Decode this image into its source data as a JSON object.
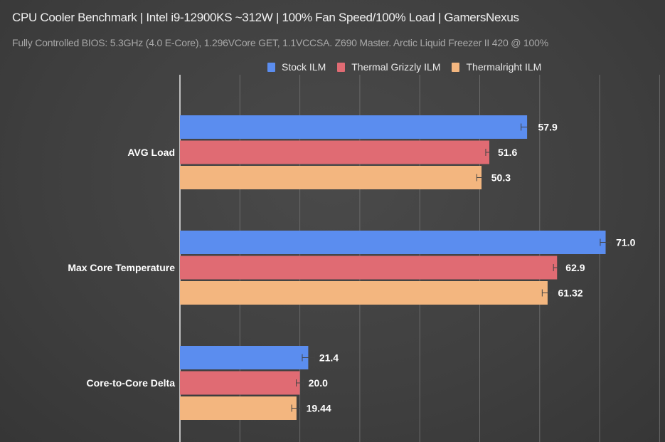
{
  "chart_data": {
    "type": "bar",
    "orientation": "horizontal",
    "title": "CPU Cooler Benchmark | Intel i9-12900KS ~312W | 100% Fan Speed/100% Load | GamersNexus",
    "subtitle": "Fully Controlled BIOS: 5.3GHz (4.0 E-Core), 1.296VCore GET, 1.1VCCSA. Z690 Master. Arctic Liquid Freezer II 420 @ 100%",
    "categories": [
      "AVG Load",
      "Max Core Temperature",
      "Core-to-Core Delta"
    ],
    "series": [
      {
        "name": "Stock ILM",
        "color": "#5b8def",
        "values": [
          57.9,
          71.0,
          21.4
        ],
        "labels": [
          "57.9",
          "71.0",
          "21.4"
        ],
        "errors": [
          1.0,
          0.9,
          1.0
        ]
      },
      {
        "name": "Thermal Grizzly ILM",
        "color": "#e06b73",
        "values": [
          51.6,
          62.9,
          20.0
        ],
        "labels": [
          "51.6",
          "62.9",
          "20.0"
        ],
        "errors": [
          0.6,
          0.6,
          0.6
        ]
      },
      {
        "name": "Thermalright ILM",
        "color": "#f3b67f",
        "values": [
          50.3,
          61.32,
          19.44
        ],
        "labels": [
          "50.3",
          "61.32",
          "19.44"
        ],
        "errors": [
          0.8,
          0.9,
          0.8
        ]
      }
    ],
    "xlim": [
      0,
      80
    ],
    "grid_step": 10,
    "grid": true,
    "legend": "top"
  }
}
